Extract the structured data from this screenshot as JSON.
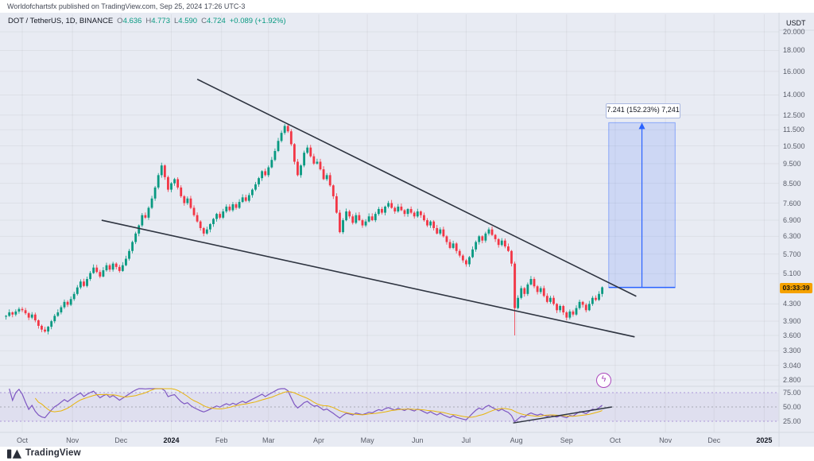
{
  "page": {
    "publish_text": "Worldofchartsfx published on TradingView.com, Sep 25, 2024 17:26 UTC-3"
  },
  "legend": {
    "title": "DOT / TetherUS, 1D, BINANCE",
    "ohlc": [
      {
        "k": "O",
        "v": "4.636"
      },
      {
        "k": "H",
        "v": "4.773"
      },
      {
        "k": "L",
        "v": "4.590"
      },
      {
        "k": "C",
        "v": "4.724"
      }
    ],
    "change": "+0.089 (+1.92%)"
  },
  "price_axis": {
    "unit": "USDT",
    "countdown": "03:33:39",
    "ticks": [
      "20.000",
      "18.000",
      "16.000",
      "14.000",
      "12.500",
      "11.500",
      "10.500",
      "9.500",
      "8.500",
      "7.600",
      "6.900",
      "6.300",
      "5.700",
      "5.100",
      "4.300",
      "3.900",
      "3.600",
      "3.300",
      "3.040",
      "2.800"
    ],
    "rsi_ticks": [
      "75.00",
      "50.00",
      "25.00"
    ]
  },
  "time_axis": {
    "ticks": [
      {
        "label": "Oct",
        "day": 0
      },
      {
        "label": "Nov",
        "day": 31
      },
      {
        "label": "Dec",
        "day": 61
      },
      {
        "label": "2024",
        "day": 92,
        "year": true
      },
      {
        "label": "Feb",
        "day": 123
      },
      {
        "label": "Mar",
        "day": 152
      },
      {
        "label": "Apr",
        "day": 183
      },
      {
        "label": "May",
        "day": 213
      },
      {
        "label": "Jun",
        "day": 244
      },
      {
        "label": "Jul",
        "day": 274
      },
      {
        "label": "Aug",
        "day": 305
      },
      {
        "label": "Sep",
        "day": 336
      },
      {
        "label": "Oct",
        "day": 366
      },
      {
        "label": "Nov",
        "day": 397
      },
      {
        "label": "Dec",
        "day": 427
      },
      {
        "label": "2025",
        "day": 458,
        "year": true
      }
    ]
  },
  "chart_data": {
    "type": "candlestick",
    "symbol": "DOT/USDT",
    "exchange": "BINANCE",
    "interval": "1D",
    "scale": "log",
    "ylim": [
      2.8,
      20.0
    ],
    "note": "daily candles approximated at ~2-day close resolution, Sep 21 2023 - Sep 25 2024",
    "first_day": -10,
    "first_open": 4.0,
    "closes": [
      4.02,
      4.1,
      4.05,
      4.12,
      4.18,
      4.15,
      4.08,
      3.98,
      4.05,
      3.92,
      3.8,
      3.72,
      3.68,
      3.78,
      3.9,
      4.02,
      4.1,
      4.22,
      4.35,
      4.28,
      4.42,
      4.55,
      4.72,
      4.88,
      4.76,
      4.95,
      5.12,
      5.28,
      5.15,
      5.02,
      5.2,
      5.35,
      5.22,
      5.4,
      5.3,
      5.18,
      5.35,
      5.55,
      5.8,
      6.1,
      6.4,
      6.7,
      7.1,
      7.0,
      7.4,
      7.8,
      8.3,
      8.9,
      9.4,
      8.8,
      8.2,
      8.5,
      8.7,
      8.3,
      7.9,
      7.6,
      7.8,
      7.4,
      7.1,
      6.85,
      6.6,
      6.4,
      6.55,
      6.75,
      6.95,
      7.15,
      7.0,
      7.25,
      7.45,
      7.3,
      7.55,
      7.4,
      7.65,
      7.85,
      7.7,
      7.95,
      8.2,
      8.45,
      8.75,
      9.1,
      8.9,
      9.3,
      9.7,
      10.2,
      10.8,
      11.3,
      11.75,
      11.4,
      10.6,
      9.6,
      8.9,
      9.4,
      10.1,
      10.4,
      9.9,
      9.5,
      9.6,
      9.2,
      8.7,
      8.9,
      8.4,
      7.9,
      7.2,
      6.45,
      6.9,
      7.25,
      7.05,
      6.8,
      7.1,
      6.9,
      6.7,
      6.85,
      7.05,
      6.9,
      7.15,
      7.35,
      7.2,
      7.45,
      7.6,
      7.4,
      7.25,
      7.45,
      7.3,
      7.15,
      7.35,
      7.2,
      7.05,
      7.25,
      7.1,
      6.9,
      6.7,
      6.85,
      6.6,
      6.4,
      6.55,
      6.3,
      6.1,
      5.9,
      6.05,
      5.8,
      5.65,
      5.5,
      5.38,
      5.6,
      5.85,
      6.1,
      6.3,
      6.15,
      6.4,
      6.55,
      6.35,
      6.2,
      6.0,
      6.15,
      5.95,
      5.8,
      5.4,
      4.2,
      4.45,
      4.7,
      4.55,
      4.8,
      4.95,
      4.75,
      4.6,
      4.7,
      4.5,
      4.35,
      4.45,
      4.3,
      4.15,
      4.25,
      4.1,
      3.98,
      4.12,
      4.05,
      4.2,
      4.35,
      4.28,
      4.15,
      4.3,
      4.45,
      4.4,
      4.55,
      4.724
    ],
    "special_wicks": {
      "48": {
        "high": 9.55
      },
      "86": {
        "high": 11.88
      },
      "157": {
        "low": 3.6
      },
      "173": {
        "low": 3.92
      }
    },
    "colors": {
      "up": "#089981",
      "down": "#f23645",
      "rsi": "#7e57c2",
      "rsi_ma": "#e8b40a",
      "measure": "#2962ff",
      "trendline": "#2e3440"
    },
    "trendlines": [
      {
        "from": {
          "day": 108,
          "price": 15.3
        },
        "to": {
          "day": 379,
          "price": 4.49
        }
      },
      {
        "from": {
          "day": 49,
          "price": 6.9
        },
        "to": {
          "day": 378,
          "price": 3.57
        }
      }
    ],
    "price_range_tool": {
      "from_day": 362,
      "to_day": 403,
      "price_from": 4.72,
      "price_to": 11.97,
      "label": "7.241 (152.23%) 7,241"
    },
    "indicator": {
      "name": "RSI",
      "period": 14,
      "levels": [
        75,
        50,
        25
      ],
      "trendline": {
        "from": {
          "day": 303,
          "value": 22
        },
        "to": {
          "day": 364,
          "value": 50
        }
      }
    }
  },
  "icons": {
    "flash": "ϟ"
  },
  "branding": {
    "logo_text": "TradingView"
  },
  "colors": {
    "background": "#e8ebf3",
    "countdown_badge": "#f5a200",
    "axis_line": "#d4d8e0"
  }
}
